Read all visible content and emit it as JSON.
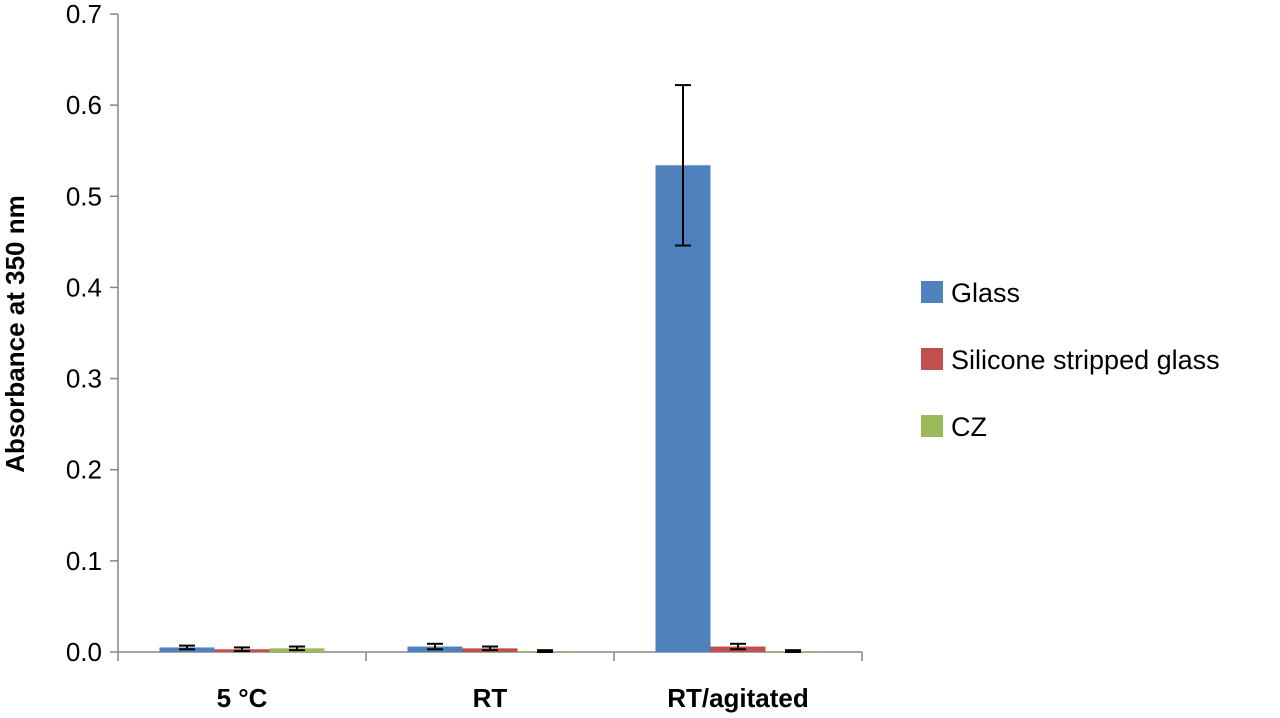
{
  "chart_data": {
    "type": "bar",
    "title": "",
    "xlabel": "",
    "ylabel": "Absorbance at 350 nm",
    "ylim": [
      0,
      0.7
    ],
    "yticks": [
      "0.0",
      "0.1",
      "0.2",
      "0.3",
      "0.4",
      "0.5",
      "0.6",
      "0.7"
    ],
    "categories": [
      "5 °C",
      "RT",
      "RT/agitated"
    ],
    "series": [
      {
        "name": "Glass",
        "color": "#4F81BD",
        "values": [
          0.005,
          0.006,
          0.534
        ],
        "errors": [
          0.002,
          0.003,
          0.088
        ]
      },
      {
        "name": "Silicone stripped glass",
        "color": "#C0504D",
        "values": [
          0.003,
          0.004,
          0.006
        ],
        "errors": [
          0.002,
          0.002,
          0.003
        ]
      },
      {
        "name": "CZ",
        "color": "#9BBB59",
        "values": [
          0.004,
          0.001,
          0.001
        ],
        "errors": [
          0.002,
          0.001,
          0.001
        ]
      }
    ],
    "grid": false,
    "legend_position": "right"
  }
}
